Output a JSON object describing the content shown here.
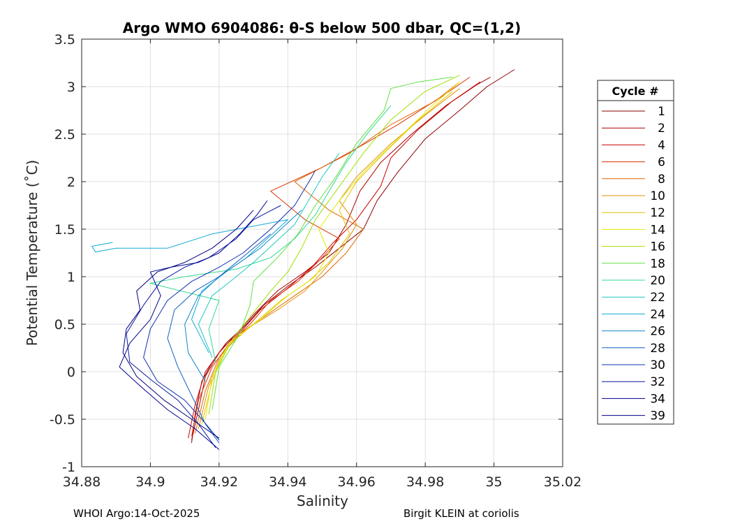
{
  "chart_data": {
    "type": "line",
    "title": "Argo WMO 6904086: θ-S below 500 dbar,  QC=(1,2)",
    "xlabel": "Salinity",
    "ylabel": "Potential Temperature (˚C)",
    "xlim": [
      34.88,
      35.02
    ],
    "ylim": [
      -1,
      3.5
    ],
    "xticks": [
      34.88,
      34.9,
      34.92,
      34.94,
      34.96,
      34.98,
      35,
      35.02
    ],
    "xtick_labels": [
      "34.88",
      "34.9",
      "34.92",
      "34.94",
      "34.96",
      "34.98",
      "35",
      "35.02"
    ],
    "yticks": [
      -1,
      -0.5,
      0,
      0.5,
      1,
      1.5,
      2,
      2.5,
      3,
      3.5
    ],
    "ytick_labels": [
      "-1",
      "-0.5",
      "0",
      "0.5",
      "1",
      "1.5",
      "2",
      "2.5",
      "3",
      "3.5"
    ],
    "grid": true,
    "legend": {
      "title": "Cycle #",
      "position": "right-outside"
    },
    "series": [
      {
        "name": "1",
        "color": "#8B0000",
        "points": [
          [
            34.912,
            -0.75
          ],
          [
            34.913,
            -0.45
          ],
          [
            34.915,
            -0.1
          ],
          [
            34.918,
            0.1
          ],
          [
            34.922,
            0.3
          ],
          [
            34.928,
            0.5
          ],
          [
            34.933,
            0.7
          ],
          [
            34.94,
            0.9
          ],
          [
            34.948,
            1.1
          ],
          [
            34.955,
            1.3
          ],
          [
            34.962,
            1.5
          ],
          [
            34.966,
            1.8
          ],
          [
            34.972,
            2.1
          ],
          [
            34.98,
            2.45
          ],
          [
            34.99,
            2.75
          ],
          [
            34.998,
            3.0
          ],
          [
            35.006,
            3.18
          ]
        ]
      },
      {
        "name": "2",
        "color": "#AA0000",
        "points": [
          [
            34.912,
            -0.72
          ],
          [
            34.914,
            -0.4
          ],
          [
            34.916,
            -0.05
          ],
          [
            34.92,
            0.2
          ],
          [
            34.925,
            0.4
          ],
          [
            34.93,
            0.6
          ],
          [
            34.937,
            0.85
          ],
          [
            34.945,
            1.05
          ],
          [
            34.952,
            1.25
          ],
          [
            34.957,
            1.55
          ],
          [
            34.961,
            1.9
          ],
          [
            34.967,
            2.2
          ],
          [
            34.976,
            2.5
          ],
          [
            34.986,
            2.8
          ],
          [
            34.995,
            3.02
          ],
          [
            34.999,
            3.1
          ]
        ]
      },
      {
        "name": "4",
        "color": "#CC0000",
        "points": [
          [
            34.911,
            -0.7
          ],
          [
            34.913,
            -0.35
          ],
          [
            34.916,
            0.0
          ],
          [
            34.921,
            0.25
          ],
          [
            34.927,
            0.45
          ],
          [
            34.932,
            0.65
          ],
          [
            34.94,
            0.88
          ],
          [
            34.947,
            1.1
          ],
          [
            34.953,
            1.35
          ],
          [
            34.96,
            1.6
          ],
          [
            34.967,
            1.95
          ],
          [
            34.97,
            2.25
          ],
          [
            34.978,
            2.55
          ],
          [
            34.988,
            2.85
          ],
          [
            34.996,
            3.05
          ]
        ]
      },
      {
        "name": "6",
        "color": "#DD3300",
        "points": [
          [
            34.912,
            -0.68
          ],
          [
            34.914,
            -0.3
          ],
          [
            34.918,
            0.05
          ],
          [
            34.923,
            0.3
          ],
          [
            34.929,
            0.5
          ],
          [
            34.935,
            0.75
          ],
          [
            34.943,
            0.95
          ],
          [
            34.95,
            1.2
          ],
          [
            34.955,
            1.4
          ],
          [
            34.945,
            1.6
          ],
          [
            34.935,
            1.9
          ],
          [
            34.95,
            2.15
          ],
          [
            34.96,
            2.35
          ],
          [
            34.972,
            2.6
          ],
          [
            34.985,
            2.9
          ],
          [
            34.993,
            3.1
          ]
        ]
      },
      {
        "name": "8",
        "color": "#E06600",
        "points": [
          [
            34.913,
            -0.65
          ],
          [
            34.916,
            -0.2
          ],
          [
            34.92,
            0.15
          ],
          [
            34.926,
            0.4
          ],
          [
            34.934,
            0.6
          ],
          [
            34.942,
            0.8
          ],
          [
            34.95,
            1.0
          ],
          [
            34.957,
            1.25
          ],
          [
            34.962,
            1.5
          ],
          [
            34.952,
            1.7
          ],
          [
            34.942,
            2.0
          ],
          [
            34.958,
            2.3
          ],
          [
            34.97,
            2.6
          ],
          [
            34.983,
            2.85
          ],
          [
            34.99,
            3.05
          ]
        ]
      },
      {
        "name": "10",
        "color": "#E09000",
        "points": [
          [
            34.914,
            -0.6
          ],
          [
            34.917,
            -0.15
          ],
          [
            34.921,
            0.2
          ],
          [
            34.928,
            0.45
          ],
          [
            34.937,
            0.65
          ],
          [
            34.945,
            0.85
          ],
          [
            34.95,
            1.05
          ],
          [
            34.956,
            1.3
          ],
          [
            34.96,
            1.55
          ],
          [
            34.955,
            1.8
          ],
          [
            34.96,
            2.05
          ],
          [
            34.97,
            2.4
          ],
          [
            34.98,
            2.7
          ],
          [
            34.99,
            2.98
          ]
        ]
      },
      {
        "name": "12",
        "color": "#E0C000",
        "points": [
          [
            34.915,
            -0.55
          ],
          [
            34.918,
            -0.1
          ],
          [
            34.922,
            0.25
          ],
          [
            34.93,
            0.5
          ],
          [
            34.938,
            0.75
          ],
          [
            34.946,
            0.95
          ],
          [
            34.952,
            1.15
          ],
          [
            34.958,
            1.45
          ],
          [
            34.955,
            1.7
          ],
          [
            34.96,
            2.0
          ],
          [
            34.968,
            2.3
          ],
          [
            34.978,
            2.65
          ],
          [
            34.988,
            2.95
          ]
        ]
      },
      {
        "name": "14",
        "color": "#E8E800",
        "points": [
          [
            34.916,
            -0.5
          ],
          [
            34.918,
            -0.05
          ],
          [
            34.923,
            0.3
          ],
          [
            34.932,
            0.55
          ],
          [
            34.94,
            0.8
          ],
          [
            34.948,
            1.0
          ],
          [
            34.952,
            1.25
          ],
          [
            34.949,
            1.5
          ],
          [
            34.955,
            1.8
          ],
          [
            34.962,
            2.1
          ],
          [
            34.972,
            2.45
          ],
          [
            34.982,
            2.8
          ],
          [
            34.99,
            3.05
          ]
        ]
      },
      {
        "name": "16",
        "color": "#A0E000",
        "points": [
          [
            34.917,
            -0.45
          ],
          [
            34.919,
            0.0
          ],
          [
            34.924,
            0.35
          ],
          [
            34.93,
            0.62
          ],
          [
            34.935,
            0.85
          ],
          [
            34.94,
            1.05
          ],
          [
            34.944,
            1.3
          ],
          [
            34.948,
            1.6
          ],
          [
            34.955,
            1.95
          ],
          [
            34.962,
            2.3
          ],
          [
            34.97,
            2.65
          ],
          [
            34.98,
            2.95
          ],
          [
            34.99,
            3.12
          ]
        ]
      },
      {
        "name": "18",
        "color": "#60E040",
        "points": [
          [
            34.918,
            -0.4
          ],
          [
            34.92,
            0.05
          ],
          [
            34.926,
            0.4
          ],
          [
            34.929,
            0.7
          ],
          [
            34.93,
            0.95
          ],
          [
            34.937,
            1.2
          ],
          [
            34.943,
            1.45
          ],
          [
            34.948,
            1.75
          ],
          [
            34.954,
            2.05
          ],
          [
            34.96,
            2.4
          ],
          [
            34.968,
            2.75
          ],
          [
            34.97,
            2.98
          ],
          [
            34.978,
            3.05
          ],
          [
            34.988,
            3.1
          ]
        ]
      },
      {
        "name": "20",
        "color": "#30D890",
        "points": [
          [
            34.919,
            0.1
          ],
          [
            34.917,
            0.45
          ],
          [
            34.92,
            0.75
          ],
          [
            34.9,
            0.93
          ],
          [
            34.91,
            1.0
          ],
          [
            34.925,
            1.08
          ],
          [
            34.935,
            1.2
          ],
          [
            34.942,
            1.4
          ],
          [
            34.948,
            1.65
          ],
          [
            34.952,
            1.9
          ],
          [
            34.957,
            2.2
          ],
          [
            34.963,
            2.5
          ],
          [
            34.97,
            2.8
          ]
        ]
      },
      {
        "name": "22",
        "color": "#20C8C0",
        "points": [
          [
            34.918,
            0.15
          ],
          [
            34.914,
            0.5
          ],
          [
            34.918,
            0.8
          ],
          [
            34.925,
            1.0
          ],
          [
            34.93,
            1.15
          ],
          [
            34.936,
            1.35
          ],
          [
            34.942,
            1.55
          ],
          [
            34.946,
            1.8
          ],
          [
            34.95,
            2.05
          ],
          [
            34.955,
            2.3
          ]
        ]
      },
      {
        "name": "24",
        "color": "#10A8D8",
        "points": [
          [
            34.917,
            0.2
          ],
          [
            34.912,
            0.55
          ],
          [
            34.915,
            0.85
          ],
          [
            34.922,
            1.05
          ],
          [
            34.928,
            1.2
          ],
          [
            34.934,
            1.4
          ],
          [
            34.94,
            1.6
          ],
          [
            34.918,
            1.45
          ],
          [
            34.905,
            1.3
          ],
          [
            34.89,
            1.3
          ],
          [
            34.884,
            1.26
          ],
          [
            34.883,
            1.32
          ],
          [
            34.889,
            1.36
          ]
        ]
      },
      {
        "name": "26",
        "color": "#1088C8",
        "points": [
          [
            34.916,
            -0.1
          ],
          [
            34.911,
            0.2
          ],
          [
            34.91,
            0.5
          ],
          [
            34.914,
            0.8
          ],
          [
            34.92,
            1.0
          ],
          [
            34.926,
            1.15
          ],
          [
            34.932,
            1.3
          ],
          [
            34.938,
            1.5
          ],
          [
            34.944,
            1.7
          ]
        ]
      },
      {
        "name": "28",
        "color": "#1060C0",
        "points": [
          [
            34.92,
            -0.75
          ],
          [
            34.916,
            -0.55
          ],
          [
            34.912,
            -0.25
          ],
          [
            34.908,
            0.05
          ],
          [
            34.905,
            0.35
          ],
          [
            34.907,
            0.65
          ],
          [
            34.913,
            0.85
          ],
          [
            34.92,
            1.0
          ],
          [
            34.925,
            1.15
          ],
          [
            34.93,
            1.3
          ],
          [
            34.935,
            1.45
          ]
        ]
      },
      {
        "name": "30",
        "color": "#1030B0",
        "points": [
          [
            34.92,
            -0.72
          ],
          [
            34.915,
            -0.5
          ],
          [
            34.91,
            -0.3
          ],
          [
            34.902,
            -0.1
          ],
          [
            34.898,
            0.15
          ],
          [
            34.9,
            0.45
          ],
          [
            34.905,
            0.75
          ],
          [
            34.912,
            0.95
          ],
          [
            34.92,
            1.1
          ],
          [
            34.927,
            1.25
          ],
          [
            34.935,
            1.5
          ],
          [
            34.942,
            1.75
          ],
          [
            34.947,
            2.05
          ],
          [
            34.948,
            2.12
          ]
        ]
      },
      {
        "name": "32",
        "color": "#0818A0",
        "points": [
          [
            34.919,
            -0.8
          ],
          [
            34.914,
            -0.55
          ],
          [
            34.908,
            -0.3
          ],
          [
            34.9,
            -0.08
          ],
          [
            34.894,
            0.1
          ],
          [
            34.893,
            0.4
          ],
          [
            34.898,
            0.7
          ],
          [
            34.903,
            0.95
          ],
          [
            34.91,
            1.1
          ],
          [
            34.917,
            1.2
          ],
          [
            34.925,
            1.4
          ],
          [
            34.93,
            1.6
          ],
          [
            34.938,
            1.75
          ]
        ]
      },
      {
        "name": "34",
        "color": "#000090",
        "points": [
          [
            34.92,
            -0.82
          ],
          [
            34.913,
            -0.6
          ],
          [
            34.905,
            -0.4
          ],
          [
            34.897,
            -0.15
          ],
          [
            34.891,
            0.05
          ],
          [
            34.894,
            0.3
          ],
          [
            34.9,
            0.55
          ],
          [
            34.903,
            0.8
          ],
          [
            34.9,
            1.05
          ],
          [
            34.906,
            1.1
          ],
          [
            34.914,
            1.15
          ],
          [
            34.92,
            1.25
          ],
          [
            34.926,
            1.45
          ],
          [
            34.931,
            1.65
          ],
          [
            34.934,
            1.8
          ]
        ]
      },
      {
        "name": "39",
        "color": "#000080",
        "points": [
          [
            34.92,
            -0.7
          ],
          [
            34.912,
            -0.5
          ],
          [
            34.904,
            -0.3
          ],
          [
            34.896,
            -0.05
          ],
          [
            34.892,
            0.2
          ],
          [
            34.893,
            0.45
          ],
          [
            34.897,
            0.65
          ],
          [
            34.896,
            0.85
          ],
          [
            34.902,
            1.05
          ],
          [
            34.91,
            1.15
          ],
          [
            34.918,
            1.3
          ],
          [
            34.925,
            1.5
          ],
          [
            34.93,
            1.7
          ]
        ]
      }
    ]
  },
  "footer": {
    "left": "WHOI Argo:14-Oct-2025",
    "right": "Birgit KLEIN at coriolis"
  }
}
